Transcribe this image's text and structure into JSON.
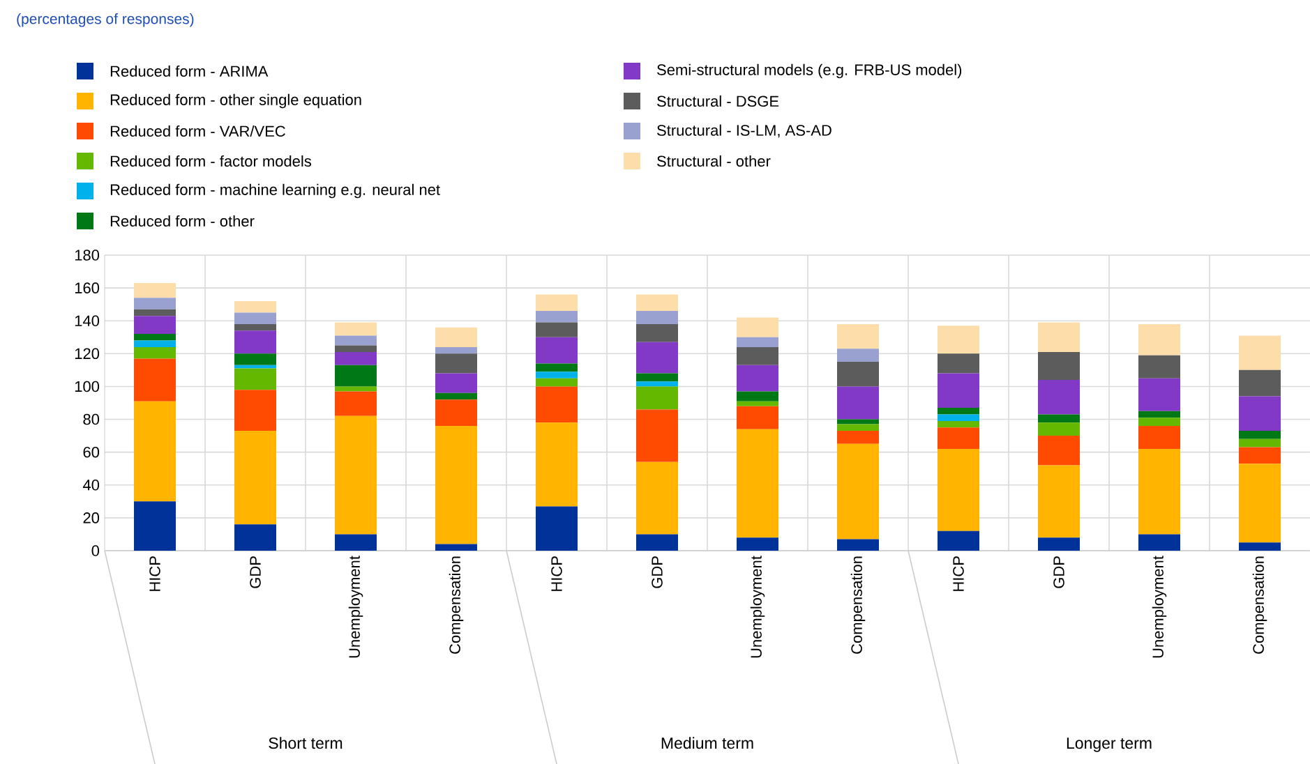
{
  "chart_data": {
    "type": "bar",
    "stacked": true,
    "title": "(percentages of responses)",
    "categories": [
      "HICP",
      "GDP",
      "Unemployment",
      "Compensation",
      "HICP",
      "GDP",
      "Unemployment",
      "Compensation",
      "HICP",
      "GDP",
      "Unemployment",
      "Compensation"
    ],
    "annotations": [
      "Short term",
      "Medium term",
      "Longer term"
    ],
    "series": [
      {
        "name": "Reduced form - ARIMA",
        "color": "#003299",
        "values": [
          30,
          16,
          10,
          4,
          27,
          10,
          8,
          7,
          12,
          8,
          10,
          5
        ]
      },
      {
        "name": "Reduced form - other single equation",
        "color": "#ffb400",
        "values": [
          61,
          57,
          72,
          72,
          51,
          44,
          66,
          58,
          50,
          44,
          52,
          48
        ]
      },
      {
        "name": "Reduced form - VAR/VEC",
        "color": "#ff4b00",
        "values": [
          26,
          25,
          15,
          16,
          22,
          32,
          14,
          8,
          13,
          18,
          14,
          10
        ]
      },
      {
        "name": "Reduced form - factor models",
        "color": "#65b800",
        "values": [
          7,
          13,
          3,
          0,
          5,
          14,
          3,
          4,
          4,
          8,
          5,
          5
        ]
      },
      {
        "name": "Reduced form - machine learning e.g. neural net",
        "color": "#00b1ea",
        "values": [
          4,
          2,
          0,
          0,
          4,
          3,
          0,
          0,
          4,
          0,
          0,
          0
        ]
      },
      {
        "name": "Reduced form - other",
        "color": "#007816",
        "values": [
          4,
          7,
          13,
          4,
          5,
          5,
          6,
          3,
          4,
          5,
          4,
          5
        ]
      },
      {
        "name": "Semi-structural models (e.g. FRB-US model)",
        "color": "#8139c6",
        "values": [
          11,
          14,
          8,
          12,
          16,
          19,
          16,
          20,
          21,
          21,
          20,
          21
        ]
      },
      {
        "name": "Structural - DSGE",
        "color": "#5c5c5c",
        "values": [
          4,
          4,
          4,
          12,
          9,
          11,
          11,
          15,
          12,
          17,
          14,
          16
        ]
      },
      {
        "name": "Structural - IS-LM, AS-AD",
        "color": "#98a1d0",
        "values": [
          7,
          7,
          6,
          4,
          7,
          8,
          6,
          8,
          0,
          0,
          0,
          0
        ]
      },
      {
        "name": "Structural - other",
        "color": "#fdddaa",
        "values": [
          9,
          7,
          8,
          12,
          10,
          10,
          12,
          15,
          17,
          18,
          19,
          21
        ]
      }
    ],
    "ylim": [
      0,
      180
    ],
    "yticks": [
      0,
      20,
      40,
      60,
      80,
      100,
      120,
      140,
      160,
      180
    ],
    "grid": true,
    "legend": "top"
  }
}
